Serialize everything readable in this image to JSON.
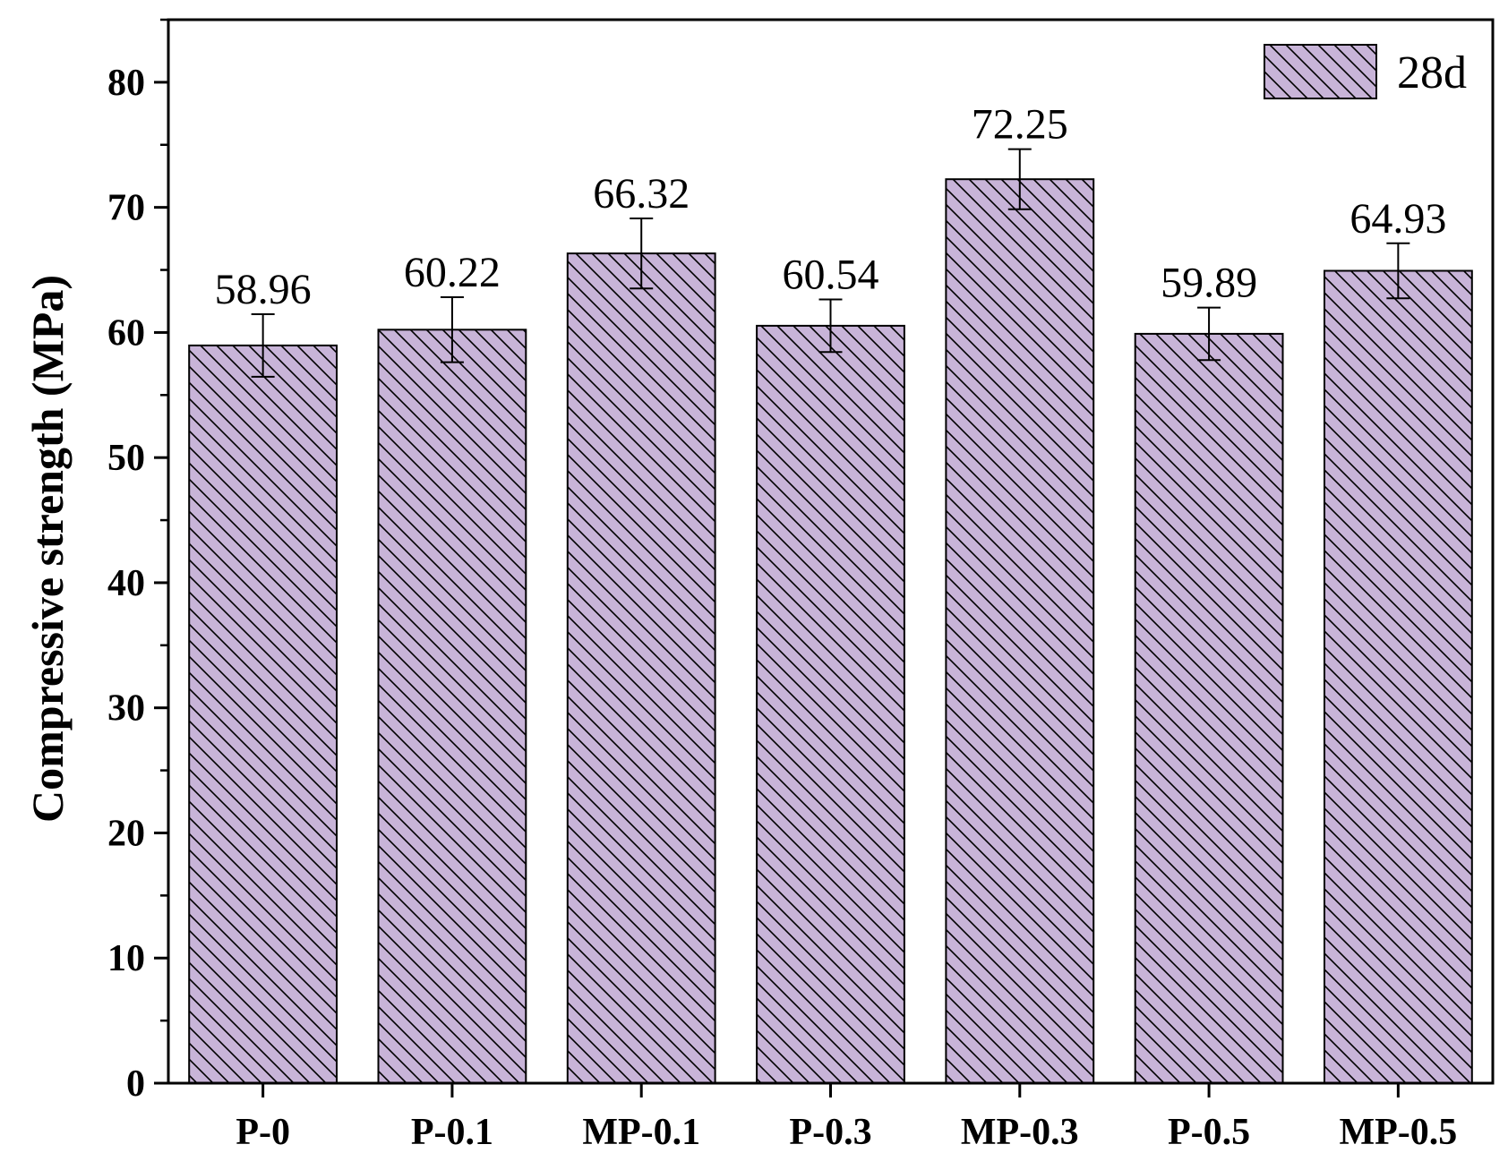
{
  "chart_data": {
    "type": "bar",
    "categories": [
      "P-0",
      "P-0.1",
      "MP-0.1",
      "P-0.3",
      "MP-0.3",
      "P-0.5",
      "MP-0.5"
    ],
    "series": [
      {
        "name": "28d",
        "values": [
          58.96,
          60.22,
          66.32,
          60.54,
          72.25,
          59.89,
          64.93
        ],
        "errors": [
          2.5,
          2.6,
          2.8,
          2.1,
          2.4,
          2.1,
          2.2
        ],
        "data_labels": [
          "58.96",
          "60.22",
          "66.32",
          "60.54",
          "72.25",
          "59.89",
          "64.93"
        ]
      }
    ],
    "ylabel": "Compressive strength (MPa)",
    "xlabel": "",
    "ylim": [
      0,
      85
    ],
    "yticks": [
      0,
      10,
      20,
      30,
      40,
      50,
      60,
      70,
      80
    ],
    "grid": false,
    "legend_position": "top-right",
    "colors": {
      "bar_fill": "#c8b4d8",
      "hatch": "#000000",
      "axis": "#000000"
    }
  }
}
